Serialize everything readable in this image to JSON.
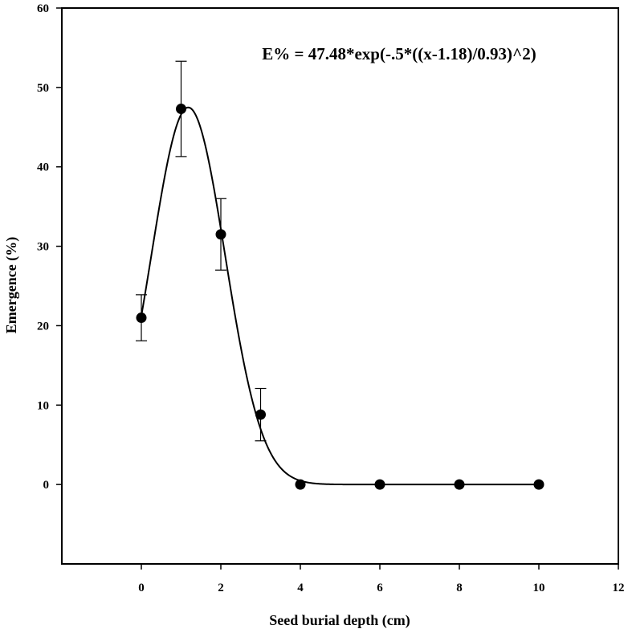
{
  "chart_data": {
    "type": "scatter",
    "title": "",
    "xlabel": "Seed burial depth (cm)",
    "ylabel": "Emergence (%)",
    "xlim": [
      -2,
      12
    ],
    "ylim": [
      -10,
      60
    ],
    "x_ticks": [
      0,
      2,
      4,
      6,
      8,
      10,
      12
    ],
    "y_ticks": [
      0,
      10,
      20,
      30,
      40,
      50,
      60
    ],
    "grid": false,
    "legend": "none",
    "annotation": "E% = 47.48*exp(-.5*((x-1.18)/0.93)^2)",
    "series": [
      {
        "x": [
          0,
          1,
          2,
          3,
          4,
          6,
          8,
          10
        ],
        "y": [
          21,
          47.3,
          31.5,
          8.8,
          0,
          0,
          0,
          0
        ],
        "error": [
          2.9,
          6.0,
          4.5,
          3.3,
          0,
          0,
          0,
          0
        ]
      }
    ],
    "fit": {
      "model": "gaussian",
      "a": 47.48,
      "x0": 1.18,
      "b": 0.93,
      "x_range": [
        0,
        10
      ]
    },
    "colors": {
      "marker": "#000000",
      "line": "#000000"
    }
  }
}
